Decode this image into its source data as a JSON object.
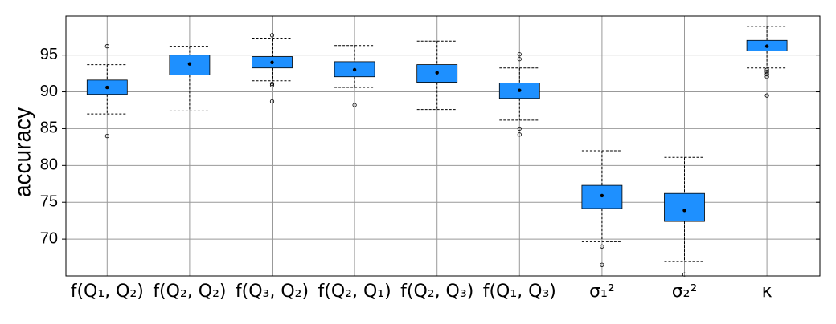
{
  "chart_data": {
    "type": "box",
    "y_label": "accuracy",
    "categories": [
      "f(Q₁, Q₂)",
      "f(Q₂, Q₂)",
      "f(Q₃, Q₂)",
      "f(Q₂, Q₁)",
      "f(Q₂, Q₃)",
      "f(Q₁, Q₃)",
      "σ₁²",
      "σ₂²",
      "κ"
    ],
    "color": "#1e90ff",
    "ylim": [
      65,
      100.3
    ],
    "yticks": [
      70,
      75,
      80,
      85,
      90,
      95
    ],
    "grid": true,
    "boxes": [
      {
        "whisker_low": 87.0,
        "q1": 89.65,
        "mean": 90.6,
        "q3": 91.6,
        "whisker_high": 93.7,
        "outliers": [
          96.2,
          84.0
        ]
      },
      {
        "whisker_low": 87.4,
        "q1": 92.3,
        "mean": 93.8,
        "q3": 95.0,
        "whisker_high": 96.2,
        "outliers": []
      },
      {
        "whisker_low": 91.5,
        "q1": 93.25,
        "mean": 94.0,
        "q3": 94.8,
        "whisker_high": 97.2,
        "outliers": [
          97.7,
          91.1,
          90.9,
          88.7
        ]
      },
      {
        "whisker_low": 90.6,
        "q1": 92.05,
        "mean": 93.0,
        "q3": 94.1,
        "whisker_high": 96.3,
        "outliers": [
          88.2
        ]
      },
      {
        "whisker_low": 87.6,
        "q1": 91.3,
        "mean": 92.6,
        "q3": 93.7,
        "whisker_high": 96.9,
        "outliers": []
      },
      {
        "whisker_low": 86.15,
        "q1": 89.1,
        "mean": 90.2,
        "q3": 91.2,
        "whisker_high": 93.25,
        "outliers": [
          95.1,
          94.45,
          85.0,
          84.2
        ]
      },
      {
        "whisker_low": 69.65,
        "q1": 74.15,
        "mean": 75.9,
        "q3": 77.3,
        "whisker_high": 82.0,
        "outliers": [
          69.0,
          66.5
        ]
      },
      {
        "whisker_low": 66.95,
        "q1": 72.4,
        "mean": 73.9,
        "q3": 76.2,
        "whisker_high": 81.1,
        "outliers": [
          65.2
        ]
      },
      {
        "whisker_low": 93.25,
        "q1": 95.55,
        "mean": 96.2,
        "q3": 97.0,
        "whisker_high": 98.9,
        "outliers": [
          93.0,
          92.7,
          92.4,
          92.05,
          89.5
        ]
      }
    ]
  }
}
